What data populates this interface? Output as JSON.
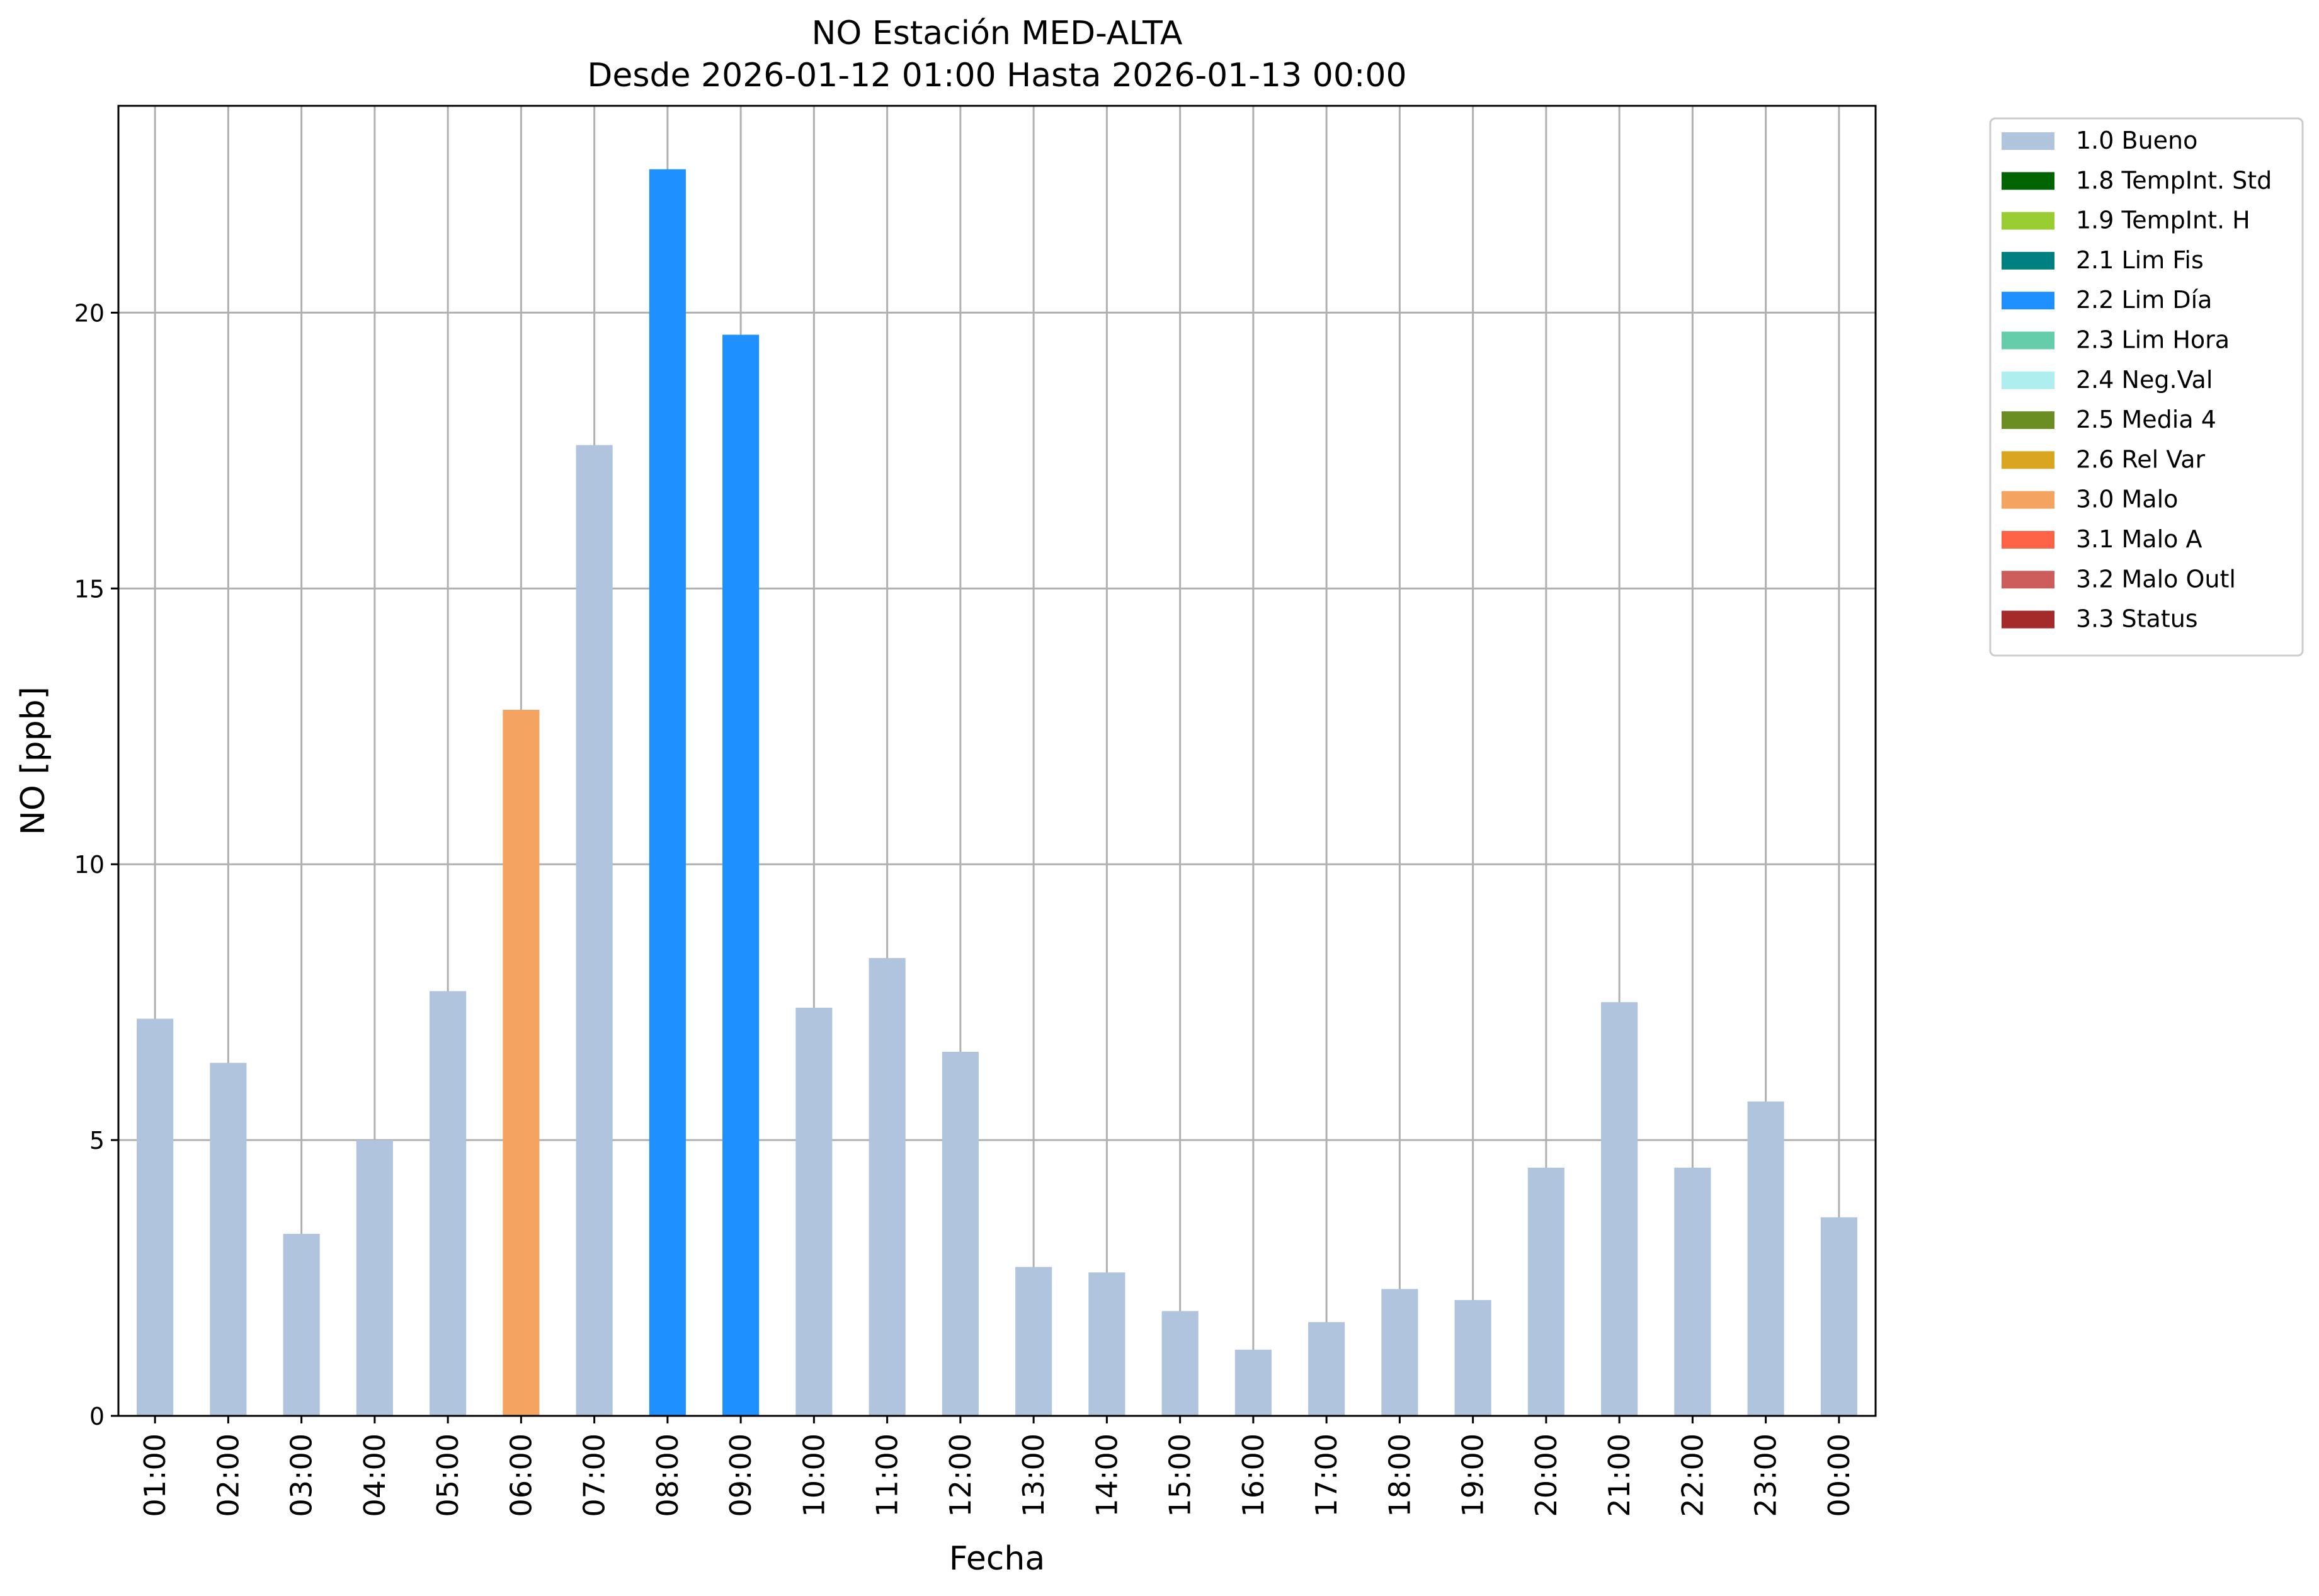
{
  "chart_data": {
    "type": "bar",
    "title": [
      "NO Estación MED-ALTA",
      "Desde 2026-01-12 01:00 Hasta 2026-01-13 00:00"
    ],
    "xlabel": "Fecha",
    "ylabel": "NO [ppb]",
    "ylim": [
      0,
      23.75
    ],
    "yticks": [
      0,
      5,
      10,
      15,
      20
    ],
    "grid": true,
    "legend_placement": "outside-top-right",
    "categories": [
      "01:00",
      "02:00",
      "03:00",
      "04:00",
      "05:00",
      "06:00",
      "07:00",
      "08:00",
      "09:00",
      "10:00",
      "11:00",
      "12:00",
      "13:00",
      "14:00",
      "15:00",
      "16:00",
      "17:00",
      "18:00",
      "19:00",
      "20:00",
      "21:00",
      "22:00",
      "23:00",
      "00:00"
    ],
    "values": [
      7.2,
      6.4,
      3.3,
      5.0,
      7.7,
      12.8,
      17.6,
      22.6,
      19.6,
      7.4,
      8.3,
      6.6,
      2.7,
      2.6,
      1.9,
      1.2,
      1.7,
      2.3,
      2.1,
      4.5,
      7.5,
      4.5,
      5.7,
      3.6
    ],
    "flags": [
      "1.0",
      "1.0",
      "1.0",
      "1.0",
      "1.0",
      "3.0",
      "1.0",
      "2.2",
      "2.2",
      "1.0",
      "1.0",
      "1.0",
      "1.0",
      "1.0",
      "1.0",
      "1.0",
      "1.0",
      "1.0",
      "1.0",
      "1.0",
      "1.0",
      "1.0",
      "1.0",
      "1.0"
    ],
    "legend": [
      {
        "code": "1.0",
        "label": "1.0 Bueno",
        "color": "#b0c4de"
      },
      {
        "code": "1.8",
        "label": "1.8 TempInt. Std",
        "color": "#006400"
      },
      {
        "code": "1.9",
        "label": "1.9 TempInt. H",
        "color": "#9acd32"
      },
      {
        "code": "2.1",
        "label": "2.1 Lim Fis",
        "color": "#008080"
      },
      {
        "code": "2.2",
        "label": "2.2 Lim Día",
        "color": "#1e90ff"
      },
      {
        "code": "2.3",
        "label": "2.3 Lim Hora",
        "color": "#66cdaa"
      },
      {
        "code": "2.4",
        "label": "2.4 Neg.Val",
        "color": "#afeeee"
      },
      {
        "code": "2.5",
        "label": "2.5 Media 4",
        "color": "#6b8e23"
      },
      {
        "code": "2.6",
        "label": "2.6 Rel Var",
        "color": "#daa520"
      },
      {
        "code": "3.0",
        "label": "3.0 Malo",
        "color": "#f4a460"
      },
      {
        "code": "3.1",
        "label": "3.1 Malo A",
        "color": "#ff6347"
      },
      {
        "code": "3.2",
        "label": "3.2 Malo Outl",
        "color": "#cd5c5c"
      },
      {
        "code": "3.3",
        "label": "3.3 Status",
        "color": "#a52a2a"
      }
    ]
  }
}
